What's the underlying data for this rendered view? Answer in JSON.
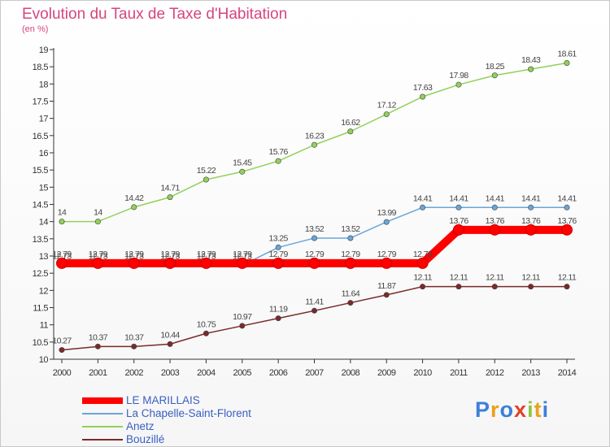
{
  "title": "Evolution du Taux de Taxe d'Habitation",
  "subtitle": "(en %)",
  "logo": {
    "letters": [
      "P",
      "r",
      "o",
      "x",
      "i",
      "t",
      "i"
    ],
    "colors": [
      "#3d7fd8",
      "#e8a21b",
      "#3d7fd8",
      "#e0422a",
      "#8ec63f",
      "#e8a21b",
      "#3d7fd8"
    ]
  },
  "chart_data": {
    "type": "line",
    "x": [
      "2000",
      "2001",
      "2002",
      "2003",
      "2004",
      "2005",
      "2006",
      "2007",
      "2008",
      "2009",
      "2010",
      "2011",
      "2012",
      "2013",
      "2014"
    ],
    "ylim": [
      10,
      19
    ],
    "yticks": [
      "10",
      "10.5",
      "11",
      "11.5",
      "12",
      "12.5",
      "13",
      "13.5",
      "14",
      "14.5",
      "15",
      "15.5",
      "16",
      "16.5",
      "17",
      "17.5",
      "18",
      "18.5",
      "19"
    ],
    "grid": false,
    "legend_position": "bottom-left",
    "series": [
      {
        "name": "Bouzillé",
        "color": "#7a2a2a",
        "values": [
          10.27,
          10.37,
          10.37,
          10.44,
          10.75,
          10.97,
          11.19,
          11.41,
          11.64,
          11.87,
          12.11,
          12.11,
          12.11,
          12.11,
          12.11
        ],
        "labels": [
          "10.27",
          "10.37",
          "10.37",
          "10.44",
          "10.75",
          "10.97",
          "11.19",
          "11.41",
          "11.64",
          "11.87",
          "12.11",
          "12.11",
          "12.11",
          "12.11",
          "12.11"
        ]
      },
      {
        "name": "Anetz",
        "color": "#90d15a",
        "values": [
          14,
          14,
          14.42,
          14.71,
          15.22,
          15.45,
          15.76,
          16.23,
          16.62,
          17.12,
          17.63,
          17.98,
          18.25,
          18.43,
          18.61
        ],
        "labels": [
          "14",
          "14",
          "14.42",
          "14.71",
          "15.22",
          "15.45",
          "15.76",
          "16.23",
          "16.62",
          "17.12",
          "17.63",
          "17.98",
          "18.25",
          "18.43",
          "18.61"
        ]
      },
      {
        "name": "La Chapelle-Saint-Florent",
        "color": "#6aa6da",
        "values": [
          12.73,
          12.73,
          12.73,
          12.73,
          12.73,
          12.73,
          13.25,
          13.52,
          13.52,
          13.99,
          14.41,
          14.41,
          14.41,
          14.41,
          14.41
        ],
        "labels": [
          "12.73",
          "12.73",
          "12.73",
          "12.73",
          "12.73",
          "12.73",
          "13.25",
          "13.52",
          "13.52",
          "13.99",
          "14.41",
          "14.41",
          "14.41",
          "14.41",
          "14.41"
        ]
      },
      {
        "name": "LE MARILLAIS",
        "color": "#ff0000",
        "values": [
          12.79,
          12.79,
          12.79,
          12.79,
          12.79,
          12.79,
          12.79,
          12.79,
          12.79,
          12.79,
          12.79,
          13.76,
          13.76,
          13.76,
          13.76
        ],
        "labels": [
          "12.79",
          "12.79",
          "12.79",
          "12.79",
          "12.79",
          "12.79",
          "12.79",
          "12.79",
          "12.79",
          "12.79",
          "12.79",
          "13.76",
          "13.76",
          "13.76",
          "13.76"
        ]
      }
    ],
    "legend": [
      {
        "label": "LE MARILLAIS",
        "color": "#ff0000"
      },
      {
        "label": "La Chapelle-Saint-Florent",
        "color": "#6aa6da"
      },
      {
        "label": "Anetz",
        "color": "#90d15a"
      },
      {
        "label": "Bouzillé",
        "color": "#7a2a2a"
      }
    ]
  }
}
